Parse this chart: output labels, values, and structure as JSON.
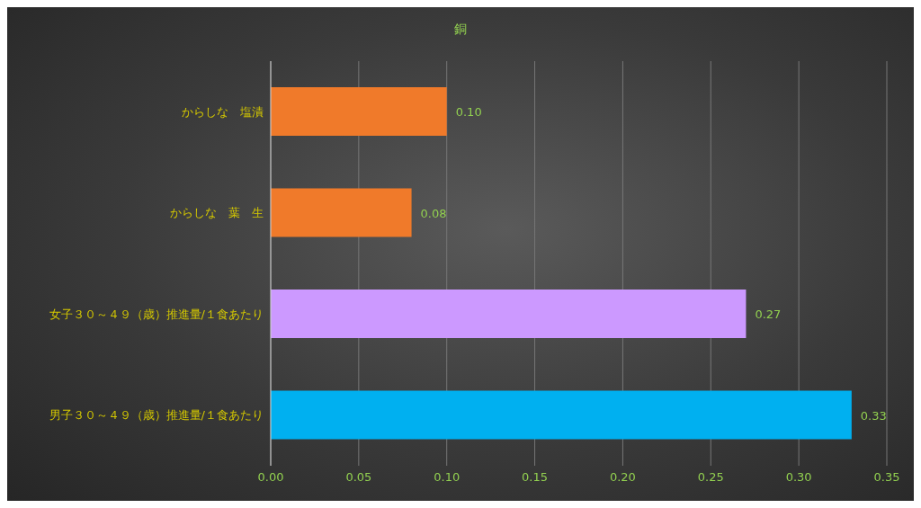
{
  "chart_data": {
    "type": "bar",
    "orientation": "horizontal",
    "title": "銅",
    "categories": [
      "からしな　塩漬",
      "からしな　葉　生",
      "女子３０～４９（歳）推進量/１食あたり",
      "男子３０～４９（歳）推進量/１食あたり"
    ],
    "values": [
      0.1,
      0.08,
      0.27,
      0.33
    ],
    "value_labels": [
      "0.10",
      "0.08",
      "0.27",
      "0.33"
    ],
    "colors": [
      "#f07a2a",
      "#f07a2a",
      "#cc99ff",
      "#00b0f0"
    ],
    "xlim": [
      0,
      0.35
    ],
    "xticks": [
      {
        "value": 0,
        "label": "0.00"
      },
      {
        "value": 0.05,
        "label": "0.05"
      },
      {
        "value": 0.1,
        "label": "0.10"
      },
      {
        "value": 0.15,
        "label": "0.15"
      },
      {
        "value": 0.2,
        "label": "0.20"
      },
      {
        "value": 0.25,
        "label": "0.25"
      },
      {
        "value": 0.3,
        "label": "0.30"
      },
      {
        "value": 0.35,
        "label": "0.35"
      }
    ],
    "grid": "x"
  }
}
